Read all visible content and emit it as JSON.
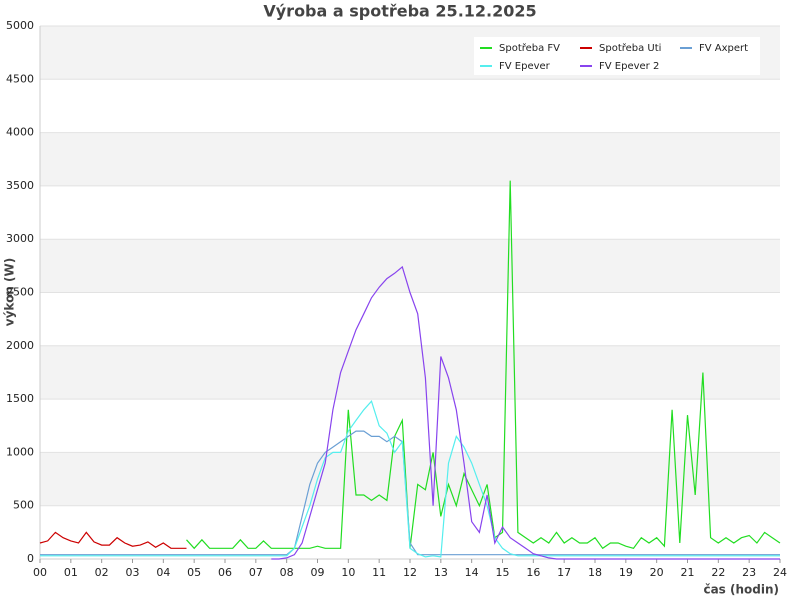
{
  "chart_data": {
    "type": "line",
    "title": "Výroba a spotřeba 25.12.2025",
    "x_label": "čas (hodin)",
    "y_label": "výkon (W)",
    "x": [
      0,
      0.25,
      0.5,
      0.75,
      1,
      1.25,
      1.5,
      1.75,
      2,
      2.25,
      2.5,
      2.75,
      3,
      3.25,
      3.5,
      3.75,
      4,
      4.25,
      4.5,
      4.75,
      5,
      5.25,
      5.5,
      5.75,
      6,
      6.25,
      6.5,
      6.75,
      7,
      7.25,
      7.5,
      7.75,
      8,
      8.25,
      8.5,
      8.75,
      9,
      9.25,
      9.5,
      9.75,
      10,
      10.25,
      10.5,
      10.75,
      11,
      11.25,
      11.5,
      11.75,
      12,
      12.25,
      12.5,
      12.75,
      13,
      13.25,
      13.5,
      13.75,
      14,
      14.25,
      14.5,
      14.75,
      15,
      15.25,
      15.5,
      15.75,
      16,
      16.25,
      16.5,
      16.75,
      17,
      17.25,
      17.5,
      17.75,
      18,
      18.25,
      18.5,
      18.75,
      19,
      19.25,
      19.5,
      19.75,
      20,
      20.25,
      20.5,
      20.75,
      21,
      21.25,
      21.5,
      21.75,
      22,
      22.25,
      22.5,
      22.75,
      23,
      23.25,
      23.5,
      23.75,
      24
    ],
    "series": [
      {
        "name": "Spotřeba FV",
        "color": "#22dd22",
        "values": [
          null,
          null,
          null,
          null,
          null,
          null,
          null,
          null,
          null,
          null,
          null,
          null,
          null,
          null,
          null,
          null,
          null,
          null,
          null,
          180,
          100,
          180,
          100,
          100,
          100,
          100,
          180,
          100,
          100,
          170,
          100,
          100,
          100,
          100,
          100,
          100,
          120,
          100,
          100,
          100,
          1400,
          600,
          600,
          550,
          600,
          550,
          1150,
          1300,
          100,
          700,
          650,
          1000,
          400,
          700,
          500,
          800,
          650,
          500,
          700,
          200,
          250,
          3550,
          250,
          200,
          150,
          200,
          150,
          250,
          150,
          200,
          150,
          150,
          200,
          100,
          150,
          150,
          120,
          100,
          200,
          150,
          200,
          120,
          1400,
          150,
          1350,
          600,
          1750,
          200,
          150,
          200,
          150,
          200,
          220,
          150,
          250,
          200,
          150
        ]
      },
      {
        "name": "Spotřeba Uti",
        "color": "#cc0000",
        "values": [
          150,
          170,
          250,
          200,
          170,
          150,
          250,
          160,
          130,
          130,
          200,
          150,
          120,
          130,
          160,
          110,
          150,
          100,
          100,
          100,
          null,
          null,
          null,
          null,
          null,
          null,
          null,
          null,
          null,
          null,
          null,
          null,
          null,
          null,
          null,
          null,
          null,
          null,
          null,
          null,
          null,
          null,
          null,
          null,
          null,
          null,
          null,
          null,
          null,
          null,
          null,
          null,
          null,
          null,
          null,
          null,
          null,
          null,
          null,
          null,
          null,
          null,
          null,
          null,
          null,
          null,
          null,
          null,
          null,
          null,
          null,
          null,
          null,
          null,
          null,
          null,
          null,
          null,
          null,
          null,
          null,
          null,
          null,
          null,
          null,
          null,
          null,
          null,
          null,
          null,
          null,
          null,
          null,
          null,
          null,
          null,
          null
        ]
      },
      {
        "name": "FV Axpert",
        "color": "#6a9fd4",
        "values": [
          40,
          40,
          40,
          40,
          40,
          40,
          40,
          40,
          40,
          40,
          40,
          40,
          40,
          40,
          40,
          40,
          40,
          40,
          40,
          40,
          40,
          40,
          40,
          40,
          40,
          40,
          40,
          40,
          40,
          40,
          40,
          40,
          40,
          100,
          400,
          700,
          900,
          1000,
          1050,
          1100,
          1150,
          1200,
          1200,
          1150,
          1150,
          1100,
          1150,
          1100,
          150,
          40,
          40,
          40,
          40,
          40,
          40,
          40,
          40,
          40,
          40,
          40,
          40,
          40,
          40,
          40,
          40,
          40,
          40,
          40,
          40,
          40,
          40,
          40,
          40,
          40,
          40,
          40,
          40,
          40,
          40,
          40,
          40,
          40,
          40,
          40,
          40,
          40,
          40,
          40,
          40,
          40,
          40,
          40,
          40,
          40,
          40,
          40,
          40
        ]
      },
      {
        "name": "FV Epever",
        "color": "#55eeee",
        "values": [
          30,
          30,
          30,
          30,
          30,
          30,
          30,
          30,
          30,
          30,
          30,
          30,
          30,
          30,
          30,
          30,
          30,
          30,
          30,
          30,
          30,
          30,
          30,
          30,
          30,
          30,
          30,
          30,
          30,
          30,
          30,
          30,
          30,
          100,
          300,
          500,
          750,
          950,
          1000,
          1000,
          1200,
          1300,
          1400,
          1480,
          1250,
          1180,
          1000,
          1100,
          100,
          50,
          20,
          30,
          20,
          900,
          1150,
          1050,
          900,
          700,
          500,
          200,
          100,
          50,
          30,
          30,
          30,
          30,
          30,
          30,
          30,
          30,
          30,
          30,
          30,
          30,
          30,
          30,
          30,
          30,
          30,
          30,
          30,
          30,
          30,
          30,
          30,
          30,
          30,
          30,
          30,
          30,
          30,
          30,
          30,
          30,
          30,
          30,
          30
        ]
      },
      {
        "name": "FV Epever 2",
        "color": "#8844ee",
        "values": [
          null,
          null,
          null,
          null,
          null,
          null,
          null,
          null,
          null,
          null,
          null,
          null,
          null,
          null,
          null,
          null,
          null,
          null,
          null,
          null,
          null,
          null,
          null,
          null,
          null,
          null,
          null,
          null,
          null,
          null,
          0,
          0,
          10,
          40,
          150,
          400,
          650,
          900,
          1400,
          1750,
          1950,
          2150,
          2300,
          2450,
          2550,
          2630,
          2680,
          2740,
          2500,
          2300,
          1700,
          500,
          1900,
          1700,
          1400,
          900,
          350,
          250,
          600,
          150,
          300,
          200,
          150,
          100,
          50,
          30,
          10,
          0,
          0,
          0,
          0,
          0,
          0,
          0,
          0,
          0,
          0,
          0,
          0,
          0,
          0,
          0,
          0,
          0,
          0,
          0,
          0,
          0,
          0,
          0,
          0,
          0,
          0,
          0,
          0,
          0,
          0
        ]
      }
    ],
    "xlim": [
      0,
      24
    ],
    "xticks": [
      {
        "value": 0,
        "label": "00"
      },
      {
        "value": 1,
        "label": "01"
      },
      {
        "value": 2,
        "label": "02"
      },
      {
        "value": 3,
        "label": "03"
      },
      {
        "value": 4,
        "label": "04"
      },
      {
        "value": 5,
        "label": "05"
      },
      {
        "value": 6,
        "label": "06"
      },
      {
        "value": 7,
        "label": "07"
      },
      {
        "value": 8,
        "label": "08"
      },
      {
        "value": 9,
        "label": "09"
      },
      10,
      11,
      12,
      13,
      14,
      15,
      16,
      17,
      18,
      19,
      20,
      21,
      22,
      23,
      24
    ],
    "ylim": [
      0,
      5000
    ],
    "yticks": [
      0,
      500,
      1000,
      1500,
      2000,
      2500,
      3000,
      3500,
      4000,
      4500,
      5000
    ],
    "grid": true,
    "legend": "upper right"
  }
}
